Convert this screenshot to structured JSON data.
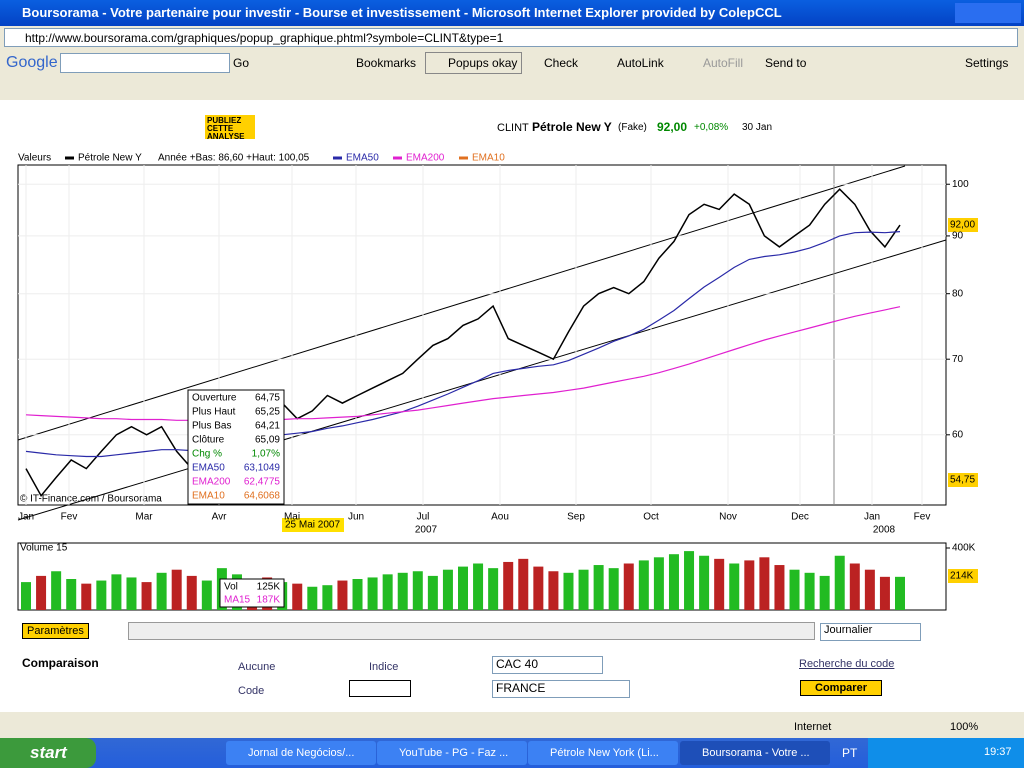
{
  "window": {
    "title": "Boursorama - Votre partenaire pour investir - Bourse et investissement - Microsoft Internet Explorer provided by ColepCCL",
    "url": "http://www.boursorama.com/graphiques/popup_graphique.phtml?symbole=CLINT&type=1"
  },
  "toolbar": {
    "google": "Google",
    "go": "Go",
    "bookmarks": "Bookmarks",
    "popups": "Popups okay",
    "check": "Check",
    "autolink": "AutoLink",
    "autofill": "AutoFill",
    "sendto": "Send to",
    "settings": "Settings"
  },
  "tools": {
    "publish": "PUBLIEZ CETTE ANALYSE"
  },
  "quote": {
    "symbol": "CLINT",
    "name": "Pétrole New Y",
    "tag": "(Fake)",
    "price": "92,00",
    "change": "+0,08%",
    "date": "30 Jan"
  },
  "chart_data": {
    "type": "line",
    "log_scale": true,
    "legend": {
      "label": "Valeurs",
      "info": "Année +Bas: 86,60 +Haut: 100,05",
      "ema10": "EMA10"
    },
    "ylim": [
      52,
      104
    ],
    "yticks": [
      100,
      90,
      80,
      70,
      60
    ],
    "months": [
      "Jan",
      "Fev",
      "Mar",
      "Avr",
      "Mai",
      "Jun",
      "Jul",
      "Aou",
      "Sep",
      "Oct",
      "Nov",
      "Dec",
      "Jan",
      "Fev"
    ],
    "years": [
      "2007",
      "2008"
    ],
    "series": [
      {
        "name": "Pétrole New Y",
        "color": "#000000",
        "values": [
          56,
          53,
          55,
          57,
          56,
          58,
          60,
          61,
          60,
          61,
          58,
          56,
          58,
          62,
          65,
          64,
          63,
          64,
          62,
          63,
          65,
          64,
          65,
          66,
          67,
          68,
          70,
          72,
          73,
          75,
          76,
          78,
          73,
          72,
          71,
          70,
          74,
          78,
          80,
          81,
          80,
          82,
          86,
          89,
          94,
          96,
          95,
          98,
          96,
          90,
          88,
          90,
          92,
          96,
          99,
          96,
          91,
          88,
          92
        ]
      },
      {
        "name": "EMA50",
        "color": "#2a2aa8",
        "values": [
          58,
          57.8,
          57.6,
          57.5,
          57.4,
          57.4,
          57.6,
          57.8,
          58,
          58.2,
          58.2,
          58.1,
          58.1,
          58.4,
          58.9,
          59.3,
          59.6,
          60,
          60.2,
          60.4,
          60.8,
          61.1,
          61.5,
          61.9,
          62.4,
          62.9,
          63.6,
          64.4,
          65.2,
          66.1,
          67,
          68,
          68.4,
          68.7,
          69,
          69.2,
          69.8,
          70.7,
          71.6,
          72.6,
          73.4,
          74.4,
          75.8,
          77.3,
          79.2,
          81.1,
          82.7,
          84.4,
          85.8,
          86.3,
          86.6,
          87.1,
          87.8,
          88.8,
          90,
          90.6,
          90.7,
          90.6,
          90.8
        ]
      },
      {
        "name": "EMA200",
        "color": "#e020d0",
        "values": [
          62.5,
          62.4,
          62.3,
          62.2,
          62.1,
          62,
          62,
          61.9,
          61.9,
          61.9,
          61.8,
          61.8,
          61.7,
          61.7,
          61.8,
          61.8,
          61.9,
          61.9,
          62,
          62,
          62.1,
          62.2,
          62.3,
          62.5,
          62.7,
          62.9,
          63.1,
          63.4,
          63.7,
          64,
          64.3,
          64.6,
          64.8,
          65,
          65.2,
          65.4,
          65.7,
          66,
          66.4,
          66.8,
          67.2,
          67.6,
          68.1,
          68.7,
          69.3,
          70,
          70.7,
          71.4,
          72.1,
          72.8,
          73.4,
          74,
          74.6,
          75.2,
          75.8,
          76.4,
          76.9,
          77.4,
          77.9
        ]
      }
    ],
    "last_label": "92,00",
    "low_label": "54,75",
    "cursor_date": "25 Mai 2007",
    "credit": "© IT-Finance.com / Boursorama",
    "tooltip": [
      [
        "Ouverture",
        "64,75"
      ],
      [
        "Plus Haut",
        "65,25"
      ],
      [
        "Plus Bas",
        "64,21"
      ],
      [
        "Clôture",
        "65,09"
      ],
      [
        "Chg %",
        "1,07%"
      ],
      [
        "EMA50",
        "63,1049"
      ],
      [
        "EMA200",
        "62,4775"
      ],
      [
        "EMA10",
        "64,6068"
      ]
    ]
  },
  "volume": {
    "title": "Volume 15",
    "ylim": [
      0,
      400
    ],
    "yticks": [
      {
        "value": 400,
        "label": "400K"
      }
    ],
    "values": [
      180,
      220,
      250,
      200,
      170,
      190,
      230,
      210,
      180,
      240,
      260,
      220,
      190,
      270,
      230,
      200,
      210,
      180,
      170,
      150,
      160,
      190,
      200,
      210,
      230,
      240,
      250,
      220,
      260,
      280,
      300,
      270,
      310,
      330,
      280,
      250,
      240,
      260,
      290,
      270,
      300,
      320,
      340,
      360,
      380,
      350,
      330,
      300,
      320,
      340,
      290,
      260,
      240,
      220,
      350,
      300,
      260,
      214,
      214
    ],
    "last_label": "214K",
    "tooltip": [
      [
        "Vol",
        "125K"
      ],
      [
        "MA15",
        "187K"
      ]
    ]
  },
  "controls": {
    "params": "Paramètres",
    "period": "Journalier",
    "compare": "Comparaison",
    "none": "Aucune",
    "index": "Indice",
    "index_value": "CAC 40",
    "code": "Code",
    "country": "FRANCE",
    "search": "Recherche du code",
    "submit": "Comparer"
  },
  "status": {
    "zone": "Internet",
    "zoom": "100%"
  },
  "taskbar": {
    "start": "start",
    "items": [
      "Jornal de Negócios/...",
      "YouTube - PG - Faz ...",
      "Pétrole New York (Li...",
      "Boursorama - Votre ..."
    ],
    "lang": "PT",
    "clock": "19:37"
  }
}
